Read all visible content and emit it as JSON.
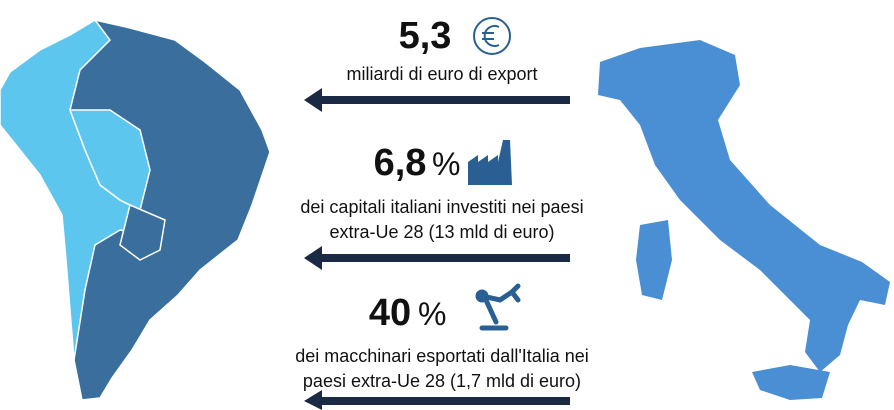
{
  "stats": [
    {
      "value": "5,3",
      "description": [
        "miliardi di euro di export"
      ]
    },
    {
      "value": "6,8",
      "unit": "%",
      "description": [
        "dei capitali italiani investiti nei paesi",
        "extra-Ue 28 (13 mld di euro)"
      ]
    },
    {
      "value": "40",
      "unit": "%",
      "description": [
        "dei macchinari esportati dall'Italia nei",
        "paesi extra-Ue 28 (1,7 mld di euro)"
      ]
    }
  ]
}
